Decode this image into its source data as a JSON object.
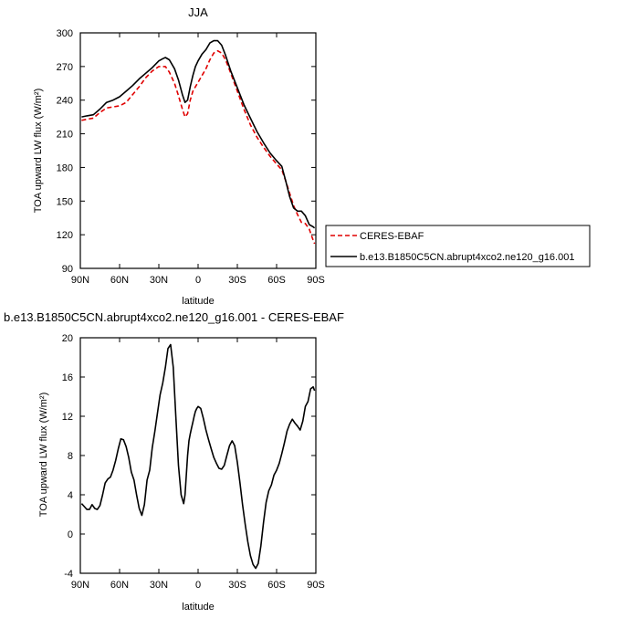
{
  "chart_data": [
    {
      "type": "line",
      "title": "JJA",
      "xlabel": "latitude",
      "ylabel": "TOA upward LW flux (W/m²)",
      "xlim": [
        90,
        -90
      ],
      "ylim": [
        90,
        300
      ],
      "x_ticks": [
        90,
        60,
        30,
        0,
        -30,
        -60,
        -90
      ],
      "x_tick_labels": [
        "90N",
        "60N",
        "30N",
        "0",
        "30S",
        "60S",
        "90S"
      ],
      "y_ticks": [
        90,
        120,
        150,
        180,
        210,
        240,
        270,
        300
      ],
      "y_tick_labels": [
        "90",
        "120",
        "150",
        "180",
        "210",
        "240",
        "270",
        "300"
      ],
      "legend_placement": "right, outside plot",
      "series": [
        {
          "name": "CERES-EBAF",
          "color": "#e00000",
          "dash": "dashed",
          "x": [
            89,
            85,
            80,
            75,
            70,
            65,
            60,
            55,
            50,
            45,
            40,
            35,
            30,
            25,
            22,
            18,
            15,
            12,
            10,
            8,
            6,
            4,
            2,
            0,
            -3,
            -6,
            -9,
            -12,
            -15,
            -18,
            -21,
            -25,
            -30,
            -35,
            -40,
            -45,
            -50,
            -55,
            -60,
            -64,
            -67,
            -70,
            -73,
            -76,
            -79,
            -82,
            -85,
            -88,
            -89
          ],
          "y": [
            222,
            223,
            224,
            229,
            233,
            234,
            235,
            238,
            245,
            252,
            260,
            266,
            270,
            270,
            265,
            255,
            244,
            232,
            225,
            228,
            240,
            248,
            252,
            256,
            262,
            268,
            276,
            282,
            284,
            282,
            276,
            264,
            248,
            232,
            218,
            207,
            198,
            190,
            183,
            178,
            168,
            157,
            146,
            138,
            131,
            130,
            125,
            115,
            112
          ]
        },
        {
          "name": "b.e13.B1850C5CN.abrupt4xco2.ne120_g16.001",
          "color": "#000000",
          "dash": "solid",
          "x": [
            89,
            85,
            80,
            75,
            70,
            65,
            60,
            55,
            50,
            45,
            40,
            35,
            30,
            27,
            25,
            22,
            18,
            15,
            12,
            10,
            8,
            6,
            4,
            2,
            0,
            -3,
            -6,
            -9,
            -12,
            -15,
            -18,
            -21,
            -25,
            -30,
            -35,
            -40,
            -45,
            -50,
            -55,
            -60,
            -64,
            -67,
            -70,
            -73,
            -76,
            -79,
            -82,
            -85,
            -88,
            -89
          ],
          "y": [
            225,
            226,
            227,
            232,
            238,
            240,
            243,
            248,
            253,
            259,
            264,
            269,
            275,
            277,
            278,
            276,
            268,
            258,
            245,
            238,
            240,
            252,
            262,
            270,
            275,
            281,
            285,
            291,
            293,
            293,
            289,
            280,
            266,
            251,
            236,
            224,
            212,
            202,
            193,
            186,
            181,
            168,
            154,
            144,
            141,
            141,
            137,
            129,
            127,
            126
          ]
        }
      ]
    },
    {
      "type": "line",
      "title": "b.e13.B1850C5CN.abrupt4xco2.ne120_g16.001 - CERES-EBAF",
      "xlabel": "latitude",
      "ylabel": "TOA upward LW flux (W/m²)",
      "xlim": [
        90,
        -90
      ],
      "ylim": [
        -4,
        20
      ],
      "x_ticks": [
        90,
        60,
        30,
        0,
        -30,
        -60,
        -90
      ],
      "x_tick_labels": [
        "90N",
        "60N",
        "30N",
        "0",
        "30S",
        "60S",
        "90S"
      ],
      "y_ticks": [
        -4,
        0,
        4,
        8,
        12,
        16,
        20
      ],
      "y_tick_labels": [
        "-4",
        "0",
        "4",
        "8",
        "12",
        "16",
        "20"
      ],
      "series": [
        {
          "color": "#000000",
          "dash": "solid",
          "x": [
            89,
            87,
            85,
            83,
            81,
            79,
            77,
            75,
            73,
            71,
            69,
            67,
            65,
            63,
            61,
            59,
            57,
            55,
            53,
            51,
            49,
            47,
            45,
            43,
            41,
            39,
            37,
            35,
            33,
            31,
            29,
            27,
            25,
            23,
            21,
            19,
            17,
            15,
            13,
            11,
            10,
            9,
            8,
            7,
            6,
            5,
            4,
            3,
            2,
            1,
            0,
            -2,
            -4,
            -6,
            -8,
            -10,
            -12,
            -14,
            -16,
            -18,
            -20,
            -22,
            -24,
            -26,
            -28,
            -30,
            -32,
            -34,
            -36,
            -38,
            -40,
            -42,
            -44,
            -46,
            -48,
            -50,
            -52,
            -54,
            -56,
            -58,
            -60,
            -62,
            -64,
            -66,
            -68,
            -70,
            -72,
            -74,
            -76,
            -78,
            -80,
            -82,
            -84,
            -86,
            -88,
            -89
          ],
          "y": [
            3.1,
            2.8,
            2.5,
            2.5,
            3.0,
            2.6,
            2.5,
            2.9,
            4.0,
            5.2,
            5.6,
            5.8,
            6.5,
            7.5,
            8.7,
            9.7,
            9.6,
            8.9,
            7.8,
            6.3,
            5.5,
            4.0,
            2.6,
            1.9,
            3.0,
            5.5,
            6.5,
            8.8,
            10.5,
            12.4,
            14.2,
            15.4,
            17.0,
            18.9,
            19.3,
            17.0,
            12.0,
            7.0,
            4.0,
            3.1,
            4.0,
            6.0,
            8.0,
            9.5,
            10.2,
            10.8,
            11.4,
            12.0,
            12.5,
            12.8,
            13.0,
            12.8,
            11.8,
            10.6,
            9.6,
            8.7,
            7.8,
            7.2,
            6.7,
            6.6,
            7.0,
            8.0,
            9.0,
            9.5,
            9.0,
            7.3,
            5.2,
            3.0,
            1.0,
            -0.8,
            -2.2,
            -3.1,
            -3.5,
            -3.0,
            -1.2,
            1.2,
            3.2,
            4.4,
            5.0,
            6.0,
            6.5,
            7.2,
            8.2,
            9.3,
            10.5,
            11.2,
            11.7,
            11.3,
            11.0,
            10.6,
            11.5,
            13.0,
            13.5,
            14.8,
            15.0,
            14.6
          ]
        }
      ]
    }
  ]
}
